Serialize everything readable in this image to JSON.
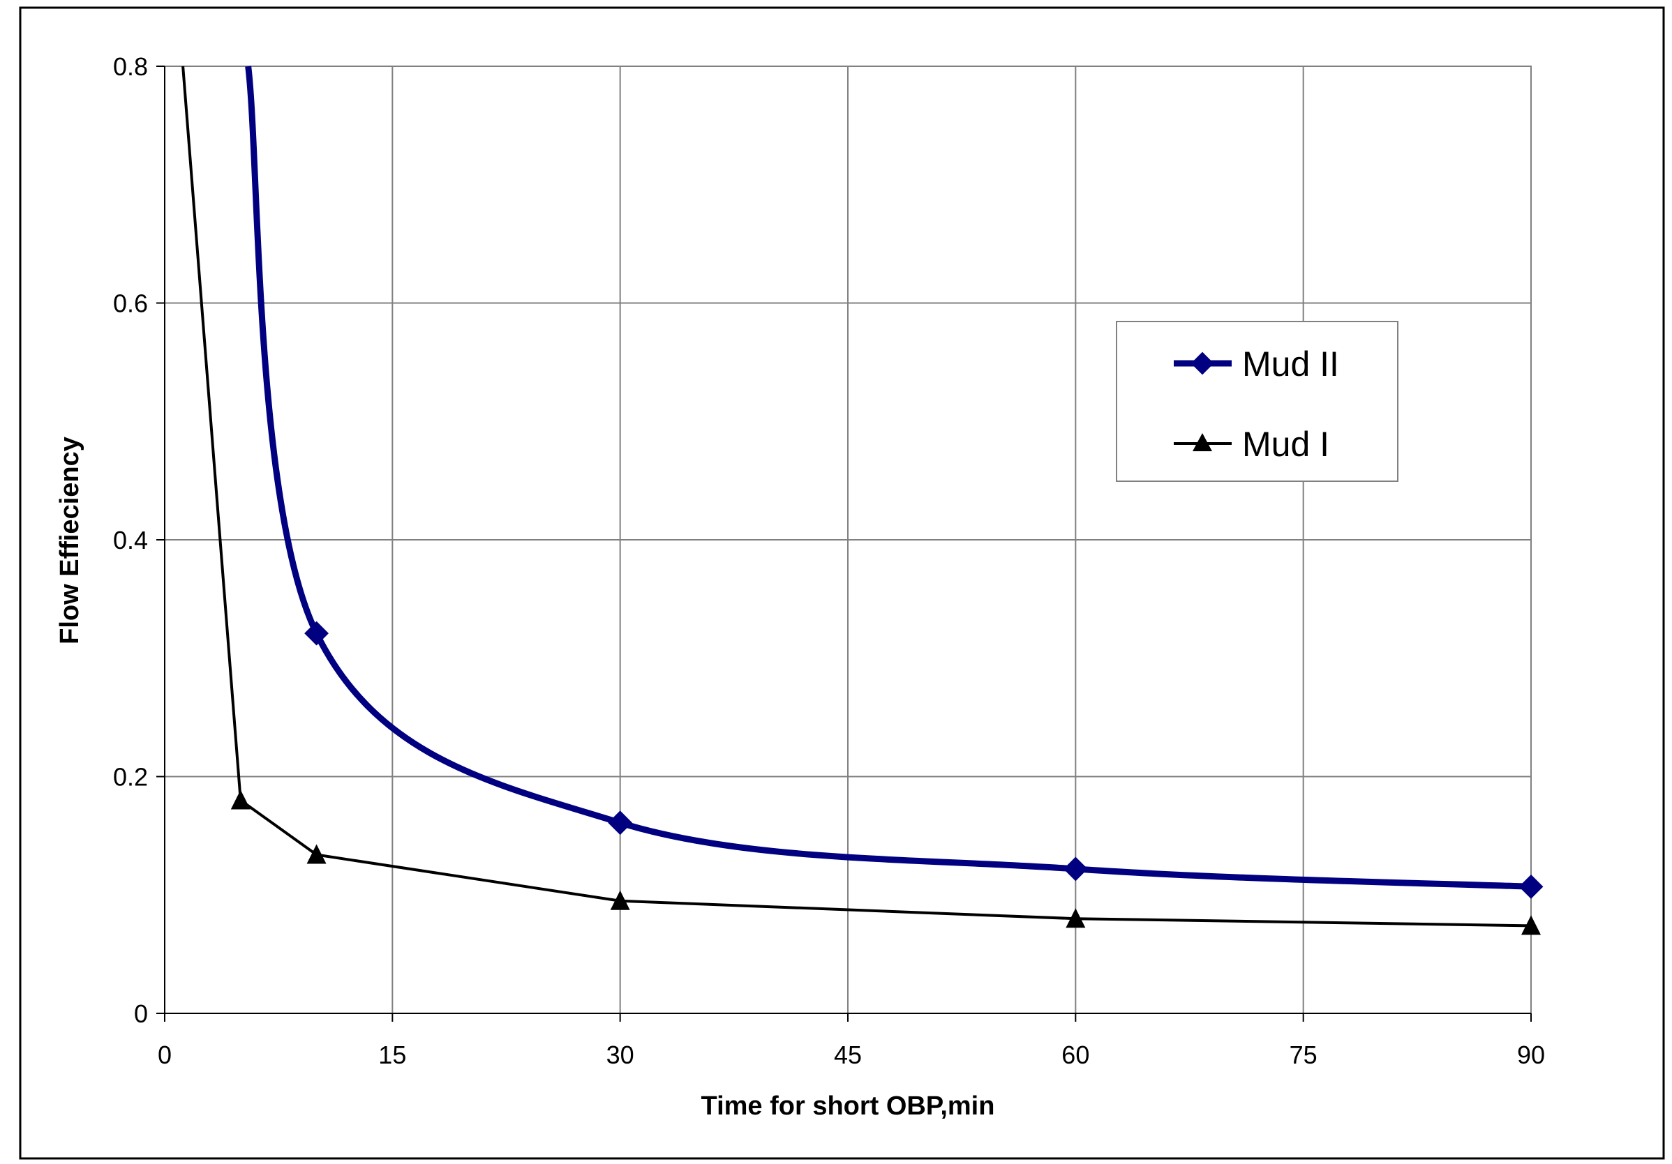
{
  "chart_data": {
    "type": "line",
    "title": "",
    "xlabel": "Time for short OBP,min",
    "ylabel": "Flow Effieciency",
    "xlim": [
      0,
      90
    ],
    "ylim": [
      0,
      0.8
    ],
    "x_ticks": [
      "0",
      "15",
      "30",
      "45",
      "60",
      "75",
      "90"
    ],
    "y_ticks": [
      "0",
      "0.2",
      "0.4",
      "0.6",
      "0.8"
    ],
    "grid": true,
    "legend_position": "right",
    "series": [
      {
        "name": "Mud II",
        "color": "#000080",
        "marker": "diamond",
        "smooth": true,
        "x": [
          5.5,
          10,
          30,
          60,
          90
        ],
        "y": [
          0.8,
          0.321,
          0.161,
          0.122,
          0.107
        ]
      },
      {
        "name": "Mud I",
        "color": "#000000",
        "marker": "triangle",
        "smooth": false,
        "x": [
          1.2,
          5,
          10,
          30,
          60,
          90
        ],
        "y": [
          0.8,
          0.18,
          0.134,
          0.095,
          0.08,
          0.074
        ]
      }
    ]
  }
}
